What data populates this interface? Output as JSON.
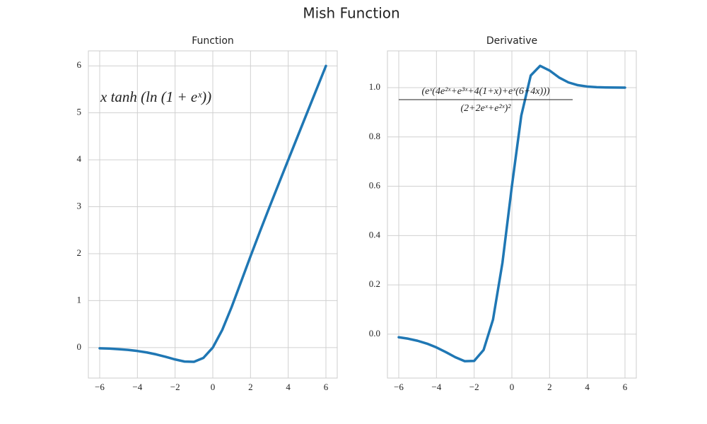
{
  "title": "Mish Function",
  "chart_data": [
    {
      "type": "line",
      "title": "Function",
      "annotation": "x tanh (ln (1 + eˣ))",
      "x": [
        -6,
        -5.5,
        -5,
        -4.5,
        -4,
        -3.5,
        -3,
        -2.5,
        -2,
        -1.5,
        -1,
        -0.5,
        0,
        0.5,
        1,
        1.5,
        2,
        2.5,
        3,
        3.5,
        4,
        4.5,
        5,
        5.5,
        6
      ],
      "values": [
        -0.015,
        -0.022,
        -0.034,
        -0.05,
        -0.073,
        -0.104,
        -0.146,
        -0.197,
        -0.253,
        -0.298,
        -0.303,
        -0.221,
        0,
        0.375,
        0.865,
        1.403,
        1.944,
        2.471,
        2.987,
        3.494,
        3.997,
        4.499,
        5.0,
        5.5,
        6.0
      ],
      "color": "#1f77b4",
      "xlim": [
        -6.6,
        6.6
      ],
      "xticks": [
        {
          "value": -6,
          "label": "−6"
        },
        {
          "value": -4,
          "label": "−4"
        },
        {
          "value": -2,
          "label": "−2"
        },
        0,
        2,
        4,
        6
      ],
      "ylim": [
        -0.65,
        6.32
      ],
      "yticks": [
        0,
        1,
        2,
        3,
        4,
        5,
        6
      ],
      "grid": true
    },
    {
      "type": "line",
      "title": "Derivative",
      "annotation": {
        "numerator": "(eˣ(4e²ˣ+e³ˣ+4(1+x)+eˣ(6+4x)))",
        "denominator": "(2+2eˣ+e²ˣ)²"
      },
      "x": [
        -6,
        -5.5,
        -5,
        -4.5,
        -4,
        -3.5,
        -3,
        -2.5,
        -2,
        -1.5,
        -1,
        -0.5,
        0,
        0.5,
        1,
        1.5,
        2,
        2.5,
        3,
        3.5,
        4,
        4.5,
        5,
        5.5,
        6
      ],
      "values": [
        -0.0124,
        -0.0183,
        -0.0268,
        -0.0384,
        -0.0538,
        -0.0728,
        -0.0934,
        -0.1097,
        -0.1084,
        -0.0641,
        0.0592,
        0.2896,
        0.6,
        0.8867,
        1.049,
        1.0884,
        1.0694,
        1.0411,
        1.0211,
        1.0099,
        1.0044,
        1.0019,
        1.0008,
        1.0003,
        1.0001
      ],
      "color": "#1f77b4",
      "xlim": [
        -6.6,
        6.6
      ],
      "xticks": [
        {
          "value": -6,
          "label": "−6"
        },
        {
          "value": -4,
          "label": "−4"
        },
        {
          "value": -2,
          "label": "−2"
        },
        0,
        2,
        4,
        6
      ],
      "ylim": [
        -0.178,
        1.149
      ],
      "yticks": [
        {
          "value": 0,
          "label": "0.0"
        },
        {
          "value": 0.2,
          "label": "0.2"
        },
        {
          "value": 0.4,
          "label": "0.4"
        },
        {
          "value": 0.6,
          "label": "0.6"
        },
        {
          "value": 0.8,
          "label": "0.8"
        },
        {
          "value": 1,
          "label": "1.0"
        }
      ],
      "grid": true
    }
  ]
}
